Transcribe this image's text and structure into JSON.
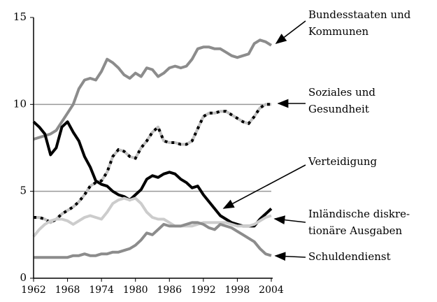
{
  "chart_data": {
    "type": "line",
    "x": [
      1962,
      1963,
      1964,
      1965,
      1966,
      1967,
      1968,
      1969,
      1970,
      1971,
      1972,
      1973,
      1974,
      1975,
      1976,
      1977,
      1978,
      1979,
      1980,
      1981,
      1982,
      1983,
      1984,
      1985,
      1986,
      1987,
      1988,
      1989,
      1990,
      1991,
      1992,
      1993,
      1994,
      1995,
      1996,
      1997,
      1998,
      1999,
      2000,
      2001,
      2002,
      2003,
      2004
    ],
    "xlim": [
      1962,
      2004
    ],
    "xticks": [
      1962,
      1968,
      1974,
      1980,
      1986,
      1992,
      1998,
      2004
    ],
    "ylim": [
      0,
      15
    ],
    "yticks": [
      0,
      5,
      10,
      15
    ],
    "grid": true,
    "series": [
      {
        "name": [
          "Bundesstaaten und",
          "Kommunen"
        ],
        "color": "#8c8c8c",
        "values": [
          8.0,
          8.1,
          8.2,
          8.3,
          8.5,
          9.0,
          9.5,
          10.0,
          10.9,
          11.4,
          11.5,
          11.4,
          11.9,
          12.6,
          12.4,
          12.1,
          11.7,
          11.5,
          11.8,
          11.6,
          12.1,
          12.0,
          11.6,
          11.8,
          12.1,
          12.2,
          12.1,
          12.2,
          12.6,
          13.2,
          13.3,
          13.3,
          13.2,
          13.2,
          13.0,
          12.8,
          12.7,
          12.8,
          12.9,
          13.5,
          13.7,
          13.6,
          13.4
        ]
      },
      {
        "name": [
          "Soziales und",
          "Gesundheit"
        ],
        "color": "#c0c0c0",
        "dash_color": "#000000",
        "values": [
          3.5,
          3.5,
          3.4,
          3.2,
          3.4,
          3.7,
          3.9,
          4.1,
          4.4,
          4.8,
          5.3,
          5.5,
          5.6,
          6.1,
          7.0,
          7.4,
          7.3,
          7.0,
          6.9,
          7.5,
          7.9,
          8.4,
          8.7,
          7.9,
          7.8,
          7.8,
          7.7,
          7.7,
          7.9,
          8.6,
          9.3,
          9.5,
          9.5,
          9.6,
          9.6,
          9.4,
          9.2,
          9.0,
          8.9,
          9.3,
          9.8,
          10.0,
          10.0
        ]
      },
      {
        "name": [
          "Verteidigung"
        ],
        "color": "#000000",
        "values": [
          9.0,
          8.7,
          8.3,
          7.1,
          7.5,
          8.7,
          9.0,
          8.4,
          7.9,
          7.0,
          6.4,
          5.6,
          5.4,
          5.3,
          5.0,
          4.8,
          4.7,
          4.5,
          4.8,
          5.1,
          5.7,
          5.9,
          5.8,
          6.0,
          6.1,
          6.0,
          5.7,
          5.5,
          5.2,
          5.3,
          4.8,
          4.4,
          4.0,
          3.6,
          3.4,
          3.2,
          3.1,
          3.0,
          3.0,
          3.0,
          3.4,
          3.7,
          4.0
        ]
      },
      {
        "name": [
          "Inländische diskre-",
          "tionäre Ausgaben"
        ],
        "color": "#cccccc",
        "values": [
          2.4,
          2.8,
          3.1,
          3.3,
          3.4,
          3.4,
          3.3,
          3.1,
          3.3,
          3.5,
          3.6,
          3.5,
          3.4,
          3.8,
          4.3,
          4.5,
          4.6,
          4.5,
          4.6,
          4.3,
          3.8,
          3.5,
          3.4,
          3.4,
          3.2,
          3.0,
          3.0,
          3.0,
          3.0,
          3.1,
          3.2,
          3.2,
          3.2,
          3.2,
          3.2,
          3.1,
          3.0,
          3.0,
          3.0,
          3.1,
          3.3,
          3.5,
          3.6
        ]
      },
      {
        "name": [
          "Schuldendienst"
        ],
        "color": "#8c8c8c",
        "values": [
          1.2,
          1.2,
          1.2,
          1.2,
          1.2,
          1.2,
          1.2,
          1.3,
          1.3,
          1.4,
          1.3,
          1.3,
          1.4,
          1.4,
          1.5,
          1.5,
          1.6,
          1.7,
          1.9,
          2.2,
          2.6,
          2.5,
          2.8,
          3.1,
          3.0,
          3.0,
          3.0,
          3.1,
          3.2,
          3.2,
          3.1,
          2.9,
          2.8,
          3.1,
          3.0,
          2.9,
          2.7,
          2.5,
          2.3,
          2.1,
          1.7,
          1.4,
          1.3
        ]
      }
    ]
  }
}
